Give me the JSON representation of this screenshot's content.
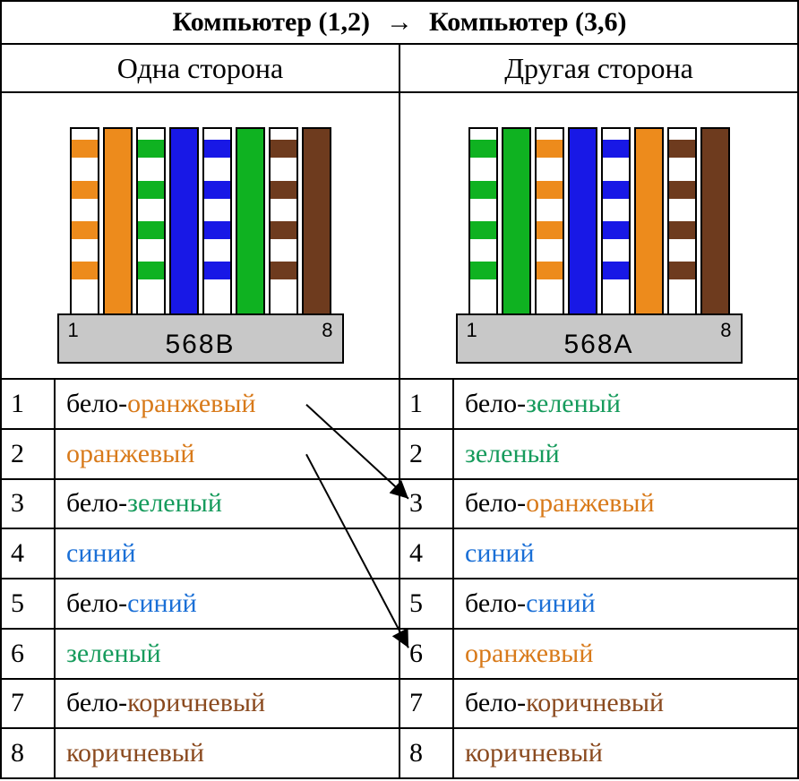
{
  "title": {
    "left": "Компьютер (1,2)",
    "arrow": "→",
    "right": "Компьютер (3,6)"
  },
  "subheaders": {
    "left": "Одна сторона",
    "right": "Другая сторона"
  },
  "colors": {
    "orange": "#ed8b1c",
    "green": "#0fb221",
    "blue": "#1818e6",
    "brown": "#6e3b1e",
    "white": "#ffffff",
    "base": "#c8c8c8",
    "text_black": "#000000",
    "text_orange": "#d87a1a",
    "text_green": "#169b5c",
    "text_blue": "#1a6fd6",
    "text_brown": "#8a4a1f"
  },
  "connectors": {
    "left": {
      "standard": "568B",
      "pin_left": "1",
      "pin_right": "8",
      "wires": [
        {
          "type": "striped",
          "color": "orange"
        },
        {
          "type": "solid",
          "color": "orange"
        },
        {
          "type": "striped",
          "color": "green"
        },
        {
          "type": "solid",
          "color": "blue"
        },
        {
          "type": "striped",
          "color": "blue"
        },
        {
          "type": "solid",
          "color": "green"
        },
        {
          "type": "striped",
          "color": "brown"
        },
        {
          "type": "solid",
          "color": "brown"
        }
      ]
    },
    "right": {
      "standard": "568A",
      "pin_left": "1",
      "pin_right": "8",
      "wires": [
        {
          "type": "striped",
          "color": "green"
        },
        {
          "type": "solid",
          "color": "green"
        },
        {
          "type": "striped",
          "color": "orange"
        },
        {
          "type": "solid",
          "color": "blue"
        },
        {
          "type": "striped",
          "color": "blue"
        },
        {
          "type": "solid",
          "color": "orange"
        },
        {
          "type": "striped",
          "color": "brown"
        },
        {
          "type": "solid",
          "color": "brown"
        }
      ]
    }
  },
  "stripe_offsets_pct": [
    6,
    28,
    50,
    72
  ],
  "pinout": {
    "left": [
      {
        "n": "1",
        "parts": [
          {
            "t": "бело-",
            "c": "text_black"
          },
          {
            "t": "оранжевый",
            "c": "text_orange"
          }
        ]
      },
      {
        "n": "2",
        "parts": [
          {
            "t": "оранжевый",
            "c": "text_orange"
          }
        ]
      },
      {
        "n": "3",
        "parts": [
          {
            "t": "бело-",
            "c": "text_black"
          },
          {
            "t": "зеленый",
            "c": "text_green"
          }
        ]
      },
      {
        "n": "4",
        "parts": [
          {
            "t": "синий",
            "c": "text_blue"
          }
        ]
      },
      {
        "n": "5",
        "parts": [
          {
            "t": "бело-",
            "c": "text_black"
          },
          {
            "t": "синий",
            "c": "text_blue"
          }
        ]
      },
      {
        "n": "6",
        "parts": [
          {
            "t": "зеленый",
            "c": "text_green"
          }
        ]
      },
      {
        "n": "7",
        "parts": [
          {
            "t": "бело-",
            "c": "text_black"
          },
          {
            "t": "коричневый",
            "c": "text_brown"
          }
        ]
      },
      {
        "n": "8",
        "parts": [
          {
            "t": "коричневый",
            "c": "text_brown"
          }
        ]
      }
    ],
    "right": [
      {
        "n": "1",
        "parts": [
          {
            "t": "бело-",
            "c": "text_black"
          },
          {
            "t": "зеленый",
            "c": "text_green"
          }
        ]
      },
      {
        "n": "2",
        "parts": [
          {
            "t": "зеленый",
            "c": "text_green"
          }
        ]
      },
      {
        "n": "3",
        "parts": [
          {
            "t": "бело-",
            "c": "text_black"
          },
          {
            "t": "оранжевый",
            "c": "text_orange"
          }
        ]
      },
      {
        "n": "4",
        "parts": [
          {
            "t": "синий",
            "c": "text_blue"
          }
        ]
      },
      {
        "n": "5",
        "parts": [
          {
            "t": "бело-",
            "c": "text_black"
          },
          {
            "t": "синий",
            "c": "text_blue"
          }
        ]
      },
      {
        "n": "6",
        "parts": [
          {
            "t": "оранжевый",
            "c": "text_orange"
          }
        ]
      },
      {
        "n": "7",
        "parts": [
          {
            "t": "бело-",
            "c": "text_black"
          },
          {
            "t": "коричневый",
            "c": "text_brown"
          }
        ]
      },
      {
        "n": "8",
        "parts": [
          {
            "t": "коричневый",
            "c": "text_brown"
          }
        ]
      }
    ]
  },
  "cross_arrows": [
    {
      "from_row": 0,
      "to_row": 2
    },
    {
      "from_row": 1,
      "to_row": 5
    }
  ]
}
